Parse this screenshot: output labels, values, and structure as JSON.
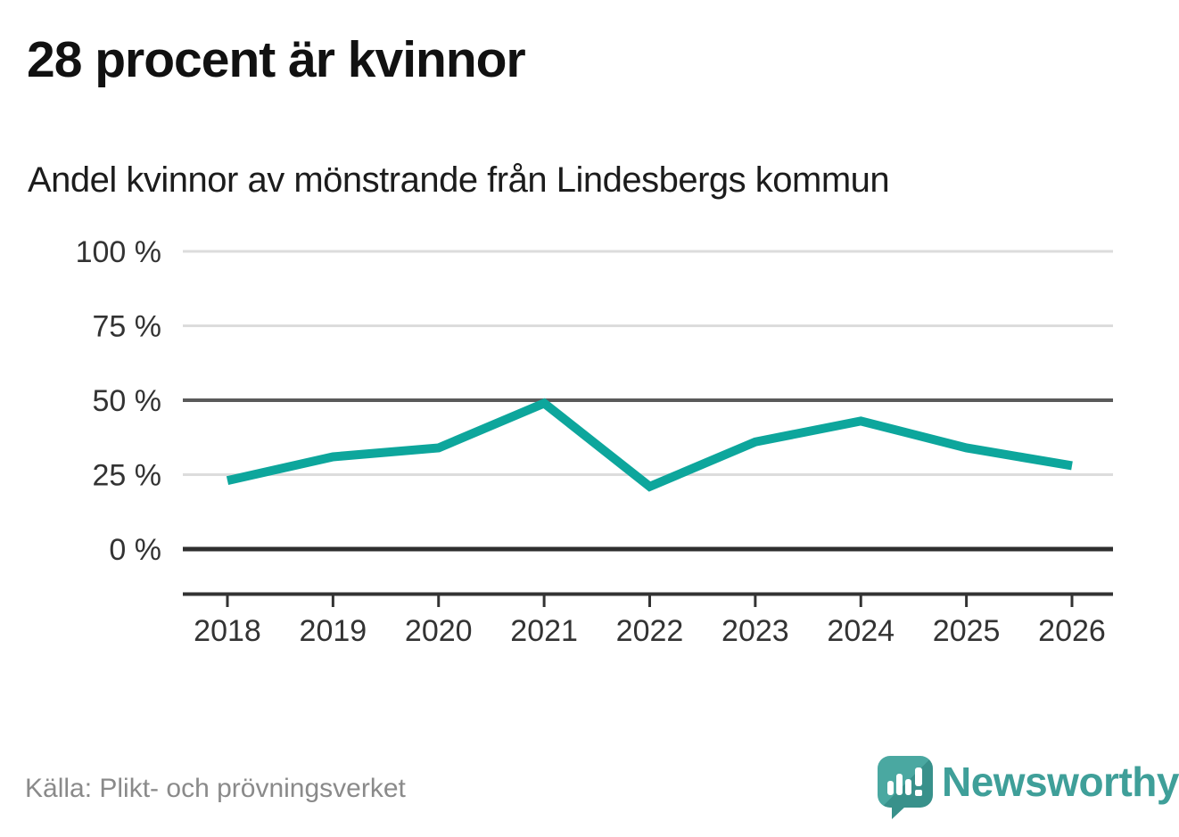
{
  "header": {
    "title": "28 procent är kvinnor",
    "subtitle": "Andel kvinnor av mönstrande från Lindesbergs kommun"
  },
  "footer": {
    "source": "Källa: Plikt- och prövningsverket",
    "brand": "Newsworthy",
    "logo_icon": "newsworthy-speech-bubble-bar-chart-icon"
  },
  "colors": {
    "line": "#0da69c",
    "gridline_light": "#dcdcdc",
    "gridline_mid": "#5a5a5a",
    "gridline_zero": "#2f2f2f",
    "axis": "#333333",
    "tick_label": "#333333",
    "brand_teal": "#3f9f99",
    "source_gray": "#8a8a8a"
  },
  "chart_data": {
    "type": "line",
    "title": "Andel kvinnor av mönstrande från Lindesbergs kommun",
    "x": [
      2018,
      2019,
      2020,
      2021,
      2022,
      2023,
      2024,
      2025,
      2026
    ],
    "series": [
      {
        "name": "Andel kvinnor av mönstrande",
        "values": [
          23,
          31,
          34,
          49,
          21,
          36,
          43,
          34,
          28
        ]
      }
    ],
    "xlabel": "",
    "ylabel": "",
    "ylim": [
      0,
      100
    ],
    "y_ticks": [
      0,
      25,
      50,
      75,
      100
    ],
    "y_tick_suffix": " %",
    "grid": "horizontal",
    "emphasized_gridlines": [
      0,
      50
    ],
    "legend": "none"
  }
}
